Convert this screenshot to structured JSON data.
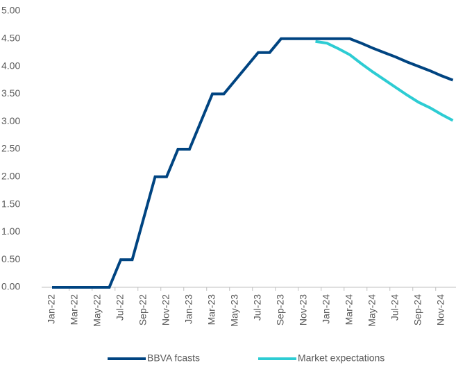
{
  "chart_data": {
    "type": "line",
    "categories": [
      "Jan-22",
      null,
      "Mar-22",
      null,
      "May-22",
      null,
      "Jul-22",
      null,
      "Sep-22",
      null,
      "Nov-22",
      null,
      "Jan-23",
      null,
      "Mar-23",
      null,
      "May-23",
      null,
      "Jul-23",
      null,
      "Sep-23",
      null,
      "Nov-23",
      null,
      "Jan-24",
      null,
      "Mar-24",
      null,
      "May-24",
      null,
      "Jul-24",
      null,
      "Sep-24",
      null,
      "Nov-24",
      null
    ],
    "series": [
      {
        "name": "BBVA fcasts",
        "color": "#004481",
        "values": [
          0,
          0,
          0,
          0,
          0,
          0,
          0.5,
          0.5,
          1.25,
          2.0,
          2.0,
          2.5,
          2.5,
          3.0,
          3.5,
          3.5,
          3.75,
          4.0,
          4.25,
          4.25,
          4.5,
          4.5,
          4.5,
          4.5,
          4.5,
          4.5,
          4.5,
          4.42,
          4.33,
          4.25,
          4.17,
          4.08,
          4.0,
          3.92,
          3.83,
          3.75
        ]
      },
      {
        "name": "Market expectations",
        "color": "#2dccd3",
        "values": [
          null,
          null,
          null,
          null,
          null,
          null,
          null,
          null,
          null,
          null,
          null,
          null,
          null,
          null,
          null,
          null,
          null,
          null,
          null,
          null,
          null,
          null,
          null,
          4.45,
          4.42,
          4.32,
          4.21,
          4.05,
          3.9,
          3.76,
          3.62,
          3.48,
          3.35,
          3.25,
          3.13,
          3.02
        ]
      }
    ],
    "ylim": [
      0,
      5
    ],
    "yticks": [
      {
        "value": 0,
        "label": "0.00"
      },
      {
        "value": 0.5,
        "label": "0.50"
      },
      {
        "value": 1,
        "label": "1.00"
      },
      {
        "value": 1.5,
        "label": "1.50"
      },
      {
        "value": 2,
        "label": "2.00"
      },
      {
        "value": 2.5,
        "label": "2.50"
      },
      {
        "value": 3,
        "label": "3.00"
      },
      {
        "value": 3.5,
        "label": "3.50"
      },
      {
        "value": 4,
        "label": "4.00"
      },
      {
        "value": 4.5,
        "label": "4.50"
      },
      {
        "value": 5,
        "label": "5.00"
      }
    ],
    "legend": "bottom"
  }
}
